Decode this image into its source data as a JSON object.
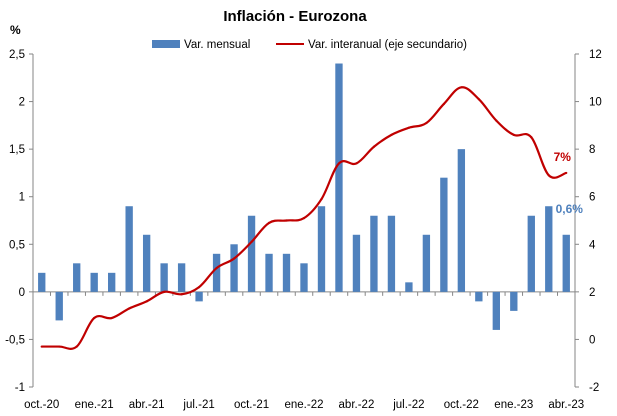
{
  "colors": {
    "bar": "#4f81bd",
    "line": "#c00000",
    "annotation_bar": "#4f81bd",
    "annotation_line": "#c00000"
  },
  "chart_data": {
    "type": "bar",
    "title": "Inflación - Eurozona",
    "y_unit_label": "%",
    "legend": {
      "position": "top",
      "bar_label": "Var. mensual",
      "line_label": "Var. interanual (eje secundario)"
    },
    "x": [
      "oct.-20",
      "nov.-20",
      "dic.-20",
      "ene.-21",
      "feb.-21",
      "mar.-21",
      "abr.-21",
      "may.-21",
      "jun.-21",
      "jul.-21",
      "ago.-21",
      "sep.-21",
      "oct.-21",
      "nov.-21",
      "dic.-21",
      "ene.-22",
      "feb.-22",
      "mar.-22",
      "abr.-22",
      "may.-22",
      "jun.-22",
      "jul.-22",
      "ago.-22",
      "sep.-22",
      "oct.-22",
      "nov.-22",
      "dic.-22",
      "ene.-23",
      "feb.-23",
      "mar.-23",
      "abr.-23"
    ],
    "x_tick_labels": [
      "oct.-20",
      "ene.-21",
      "abr.-21",
      "jul.-21",
      "oct.-21",
      "ene.-22",
      "abr.-22",
      "jul.-22",
      "oct.-22",
      "ene.-23",
      "abr.-23"
    ],
    "y_left": {
      "min": -1,
      "max": 2.5,
      "step": 0.5,
      "tick_labels": [
        "-1",
        "-0,5",
        "0",
        "0,5",
        "1",
        "1,5",
        "2",
        "2,5"
      ]
    },
    "y_right": {
      "min": -2,
      "max": 12,
      "step": 2,
      "tick_labels": [
        "-2",
        "0",
        "2",
        "4",
        "6",
        "8",
        "10",
        "12"
      ]
    },
    "series": [
      {
        "name": "Var. mensual",
        "type": "bar",
        "axis": "left",
        "values": [
          0.2,
          -0.3,
          0.3,
          0.2,
          0.2,
          0.9,
          0.6,
          0.3,
          0.3,
          -0.1,
          0.4,
          0.5,
          0.8,
          0.4,
          0.4,
          0.3,
          0.9,
          2.4,
          0.6,
          0.8,
          0.8,
          0.1,
          0.6,
          1.2,
          1.5,
          -0.1,
          -0.4,
          -0.2,
          0.8,
          0.9,
          0.6
        ]
      },
      {
        "name": "Var. interanual (eje secundario)",
        "type": "line",
        "axis": "right",
        "values": [
          -0.3,
          -0.3,
          -0.3,
          0.9,
          0.9,
          1.3,
          1.6,
          2.0,
          1.9,
          2.2,
          3.0,
          3.4,
          4.1,
          4.9,
          5.0,
          5.1,
          5.9,
          7.4,
          7.4,
          8.1,
          8.6,
          8.9,
          9.1,
          9.9,
          10.6,
          10.1,
          9.2,
          8.6,
          8.5,
          6.9,
          7.0
        ]
      }
    ],
    "annotations": [
      {
        "text": "7%",
        "series": "line",
        "index": 30
      },
      {
        "text": "0,6%",
        "series": "bar",
        "index": 30
      }
    ]
  }
}
